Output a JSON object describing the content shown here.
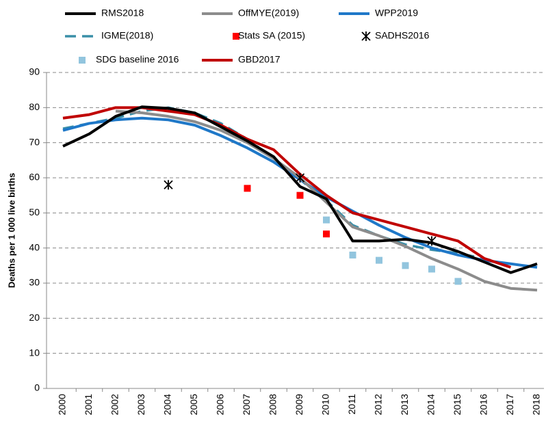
{
  "chart_data": {
    "type": "line",
    "y_label": "Deaths per 1 000 live births",
    "categories": [
      "2000",
      "2001",
      "2002",
      "2003",
      "2004",
      "2005",
      "2006",
      "2007",
      "2008",
      "2009",
      "2010",
      "2011",
      "2012",
      "2013",
      "2014",
      "2015",
      "2016",
      "2017",
      "2018"
    ],
    "ylim": [
      0,
      90
    ],
    "yticks": [
      0,
      10,
      20,
      30,
      40,
      50,
      60,
      70,
      80,
      90
    ],
    "grid": true,
    "series": [
      {
        "name": "RMS2018",
        "color": "#000000",
        "mode": "line",
        "values": [
          69,
          72.5,
          77.5,
          80.2,
          79.8,
          78.5,
          74.5,
          70.5,
          66,
          57.5,
          54,
          42,
          42,
          42.5,
          41.5,
          39,
          36,
          33,
          35.5
        ]
      },
      {
        "name": "OffMYE(2019)",
        "color": "#8c8c8c",
        "mode": "line",
        "values": [
          null,
          null,
          79,
          78.5,
          77.5,
          76,
          73.5,
          70,
          65.5,
          60,
          53,
          46,
          43.5,
          40.5,
          37,
          34,
          30.5,
          28.5,
          28
        ]
      },
      {
        "name": "WPP2019",
        "color": "#1f78c8",
        "mode": "line",
        "values": [
          73.5,
          75.5,
          76.5,
          77,
          76.5,
          75,
          72,
          68.5,
          64.5,
          59.5,
          54.5,
          50.5,
          46.5,
          43,
          40,
          38,
          36.5,
          35.5,
          34.5
        ]
      },
      {
        "name": "IGME(2018)",
        "color": "#3a8fa8",
        "mode": "dashed",
        "values": [
          74,
          75.5,
          77,
          79,
          80,
          78.5,
          75.5,
          71,
          65.5,
          59.5,
          53.5,
          46.5,
          43.5,
          41,
          39.5,
          38.5,
          37,
          35,
          null
        ]
      },
      {
        "name": "Stats SA (2015)",
        "color": "#ff0000",
        "mode": "square",
        "values": [
          null,
          null,
          null,
          null,
          null,
          null,
          null,
          57,
          null,
          55,
          44,
          null,
          null,
          null,
          null,
          null,
          null,
          null,
          null
        ]
      },
      {
        "name": "SADHS2016",
        "color": "#000000",
        "mode": "cross",
        "values": [
          null,
          null,
          null,
          null,
          58,
          null,
          null,
          null,
          null,
          60,
          null,
          null,
          null,
          null,
          42,
          null,
          null,
          null,
          null
        ]
      },
      {
        "name": "SDG baseline 2016",
        "color": "#92c5de",
        "mode": "square",
        "values": [
          null,
          null,
          null,
          null,
          null,
          null,
          null,
          null,
          null,
          null,
          48,
          38,
          36.5,
          35,
          34,
          30.5,
          null,
          null,
          null
        ]
      },
      {
        "name": "GBD2017",
        "color": "#c00000",
        "mode": "line",
        "values": [
          77,
          78,
          80,
          80,
          79,
          78,
          75,
          71,
          68,
          61,
          55,
          50,
          48,
          46,
          44,
          42,
          37,
          34.5,
          null
        ]
      }
    ]
  }
}
